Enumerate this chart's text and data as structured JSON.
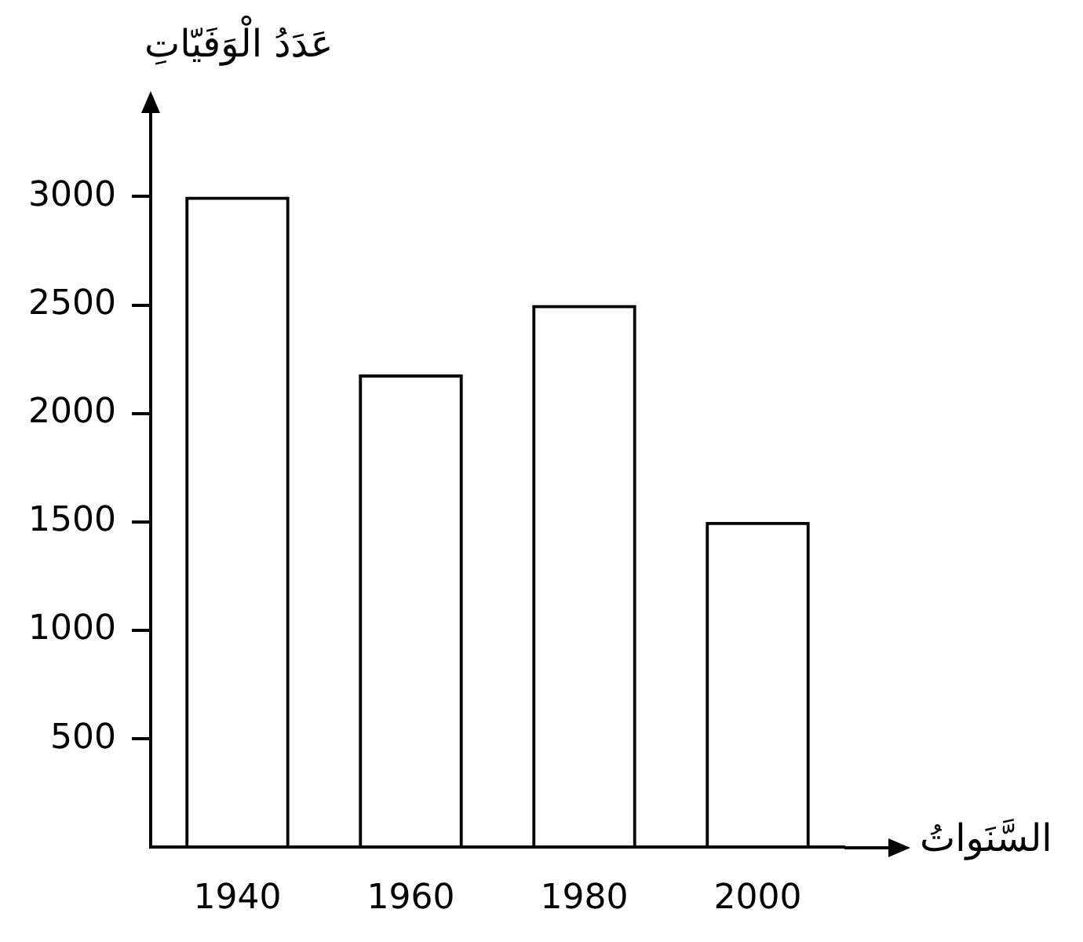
{
  "chart_data": {
    "type": "bar",
    "xlabel": "السَّنَواتُ",
    "ylabel": "عَدَدُ الْوَفَيّاتِ",
    "categories": [
      "1940",
      "1960",
      "1980",
      "2000"
    ],
    "values": [
      3000,
      2180,
      2500,
      1500
    ],
    "color": "#000000",
    "ylim": [
      0,
      3400
    ],
    "yticks": [
      500,
      1000,
      1500,
      2000,
      2500,
      3000
    ]
  }
}
